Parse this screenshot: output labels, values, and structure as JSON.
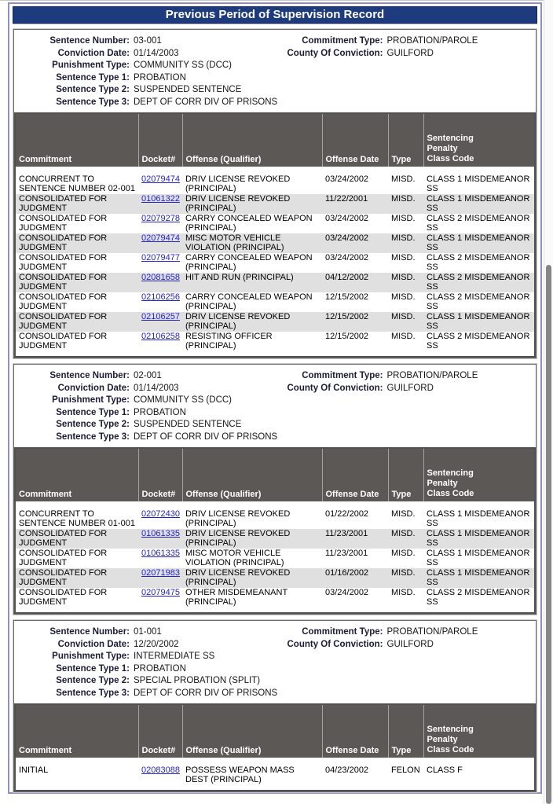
{
  "page": {
    "title": "Previous Period of Supervision Record"
  },
  "colors": {
    "title_bar": "#1e3c7d",
    "table_header": "#5c5856",
    "row_alt": "#e0e0e0",
    "link": "#2323cb",
    "outer_border": "#9090c0"
  },
  "labels": {
    "sentence_number": "Sentence Number:",
    "conviction_date": "Conviction Date:",
    "punishment_type": "Punishment Type:",
    "sentence_type_1": "Sentence Type 1:",
    "sentence_type_2": "Sentence Type 2:",
    "sentence_type_3": "Sentence Type 3:",
    "commitment_type": "Commitment Type:",
    "county_of_conviction": "County Of Conviction:"
  },
  "columns": {
    "commitment": "Commitment",
    "docket": "Docket#",
    "offense": "Offense (Qualifier)",
    "offense_date": "Offense Date",
    "type": "Type",
    "sentencing": "Sentencing\nPenalty\nClass Code"
  },
  "sections": [
    {
      "sentence_number": "03-001",
      "conviction_date": "01/14/2003",
      "punishment_type": "COMMUNITY SS (DCC)",
      "sentence_type_1": "PROBATION",
      "sentence_type_2": "SUSPENDED SENTENCE",
      "sentence_type_3": "DEPT OF CORR DIV OF PRISONS",
      "commitment_type": "PROBATION/PAROLE",
      "county_of_conviction": "GUILFORD",
      "rows": [
        {
          "commitment": "CONCURRENT TO SENTENCE NUMBER 02-001",
          "docket": "02079474",
          "offense": "DRIV LICENSE REVOKED (PRINCIPAL)",
          "offense_date": "03/24/2002",
          "type": "MISD.",
          "class_code": "CLASS 1 MISDEMEANOR SS"
        },
        {
          "commitment": "CONSOLIDATED FOR JUDGMENT",
          "docket": "01061322",
          "offense": "DRIV LICENSE REVOKED (PRINCIPAL)",
          "offense_date": "11/22/2001",
          "type": "MISD.",
          "class_code": "CLASS 1 MISDEMEANOR SS"
        },
        {
          "commitment": "CONSOLIDATED FOR JUDGMENT",
          "docket": "02079278",
          "offense": "CARRY CONCEALED WEAPON (PRINCIPAL)",
          "offense_date": "03/24/2002",
          "type": "MISD.",
          "class_code": "CLASS 2 MISDEMEANOR SS"
        },
        {
          "commitment": "CONSOLIDATED FOR JUDGMENT",
          "docket": "02079474",
          "offense": "MISC MOTOR VEHICLE VIOLATION (PRINCIPAL)",
          "offense_date": "03/24/2002",
          "type": "MISD.",
          "class_code": "CLASS 1 MISDEMEANOR SS"
        },
        {
          "commitment": "CONSOLIDATED FOR JUDGMENT",
          "docket": "02079477",
          "offense": "CARRY CONCEALED WEAPON (PRINCIPAL)",
          "offense_date": "03/24/2002",
          "type": "MISD.",
          "class_code": "CLASS 2 MISDEMEANOR SS"
        },
        {
          "commitment": "CONSOLIDATED FOR JUDGMENT",
          "docket": "02081658",
          "offense": "HIT AND RUN (PRINCIPAL)",
          "offense_date": "04/12/2002",
          "type": "MISD.",
          "class_code": "CLASS 2 MISDEMEANOR SS"
        },
        {
          "commitment": "CONSOLIDATED FOR JUDGMENT",
          "docket": "02106256",
          "offense": "CARRY CONCEALED WEAPON (PRINCIPAL)",
          "offense_date": "12/15/2002",
          "type": "MISD.",
          "class_code": "CLASS 2 MISDEMEANOR SS"
        },
        {
          "commitment": "CONSOLIDATED FOR JUDGMENT",
          "docket": "02106257",
          "offense": "DRIV LICENSE REVOKED (PRINCIPAL)",
          "offense_date": "12/15/2002",
          "type": "MISD.",
          "class_code": "CLASS 1 MISDEMEANOR SS"
        },
        {
          "commitment": "CONSOLIDATED FOR JUDGMENT",
          "docket": "02106258",
          "offense": "RESISTING OFFICER (PRINCIPAL)",
          "offense_date": "12/15/2002",
          "type": "MISD.",
          "class_code": "CLASS 2 MISDEMEANOR SS"
        }
      ]
    },
    {
      "sentence_number": "02-001",
      "conviction_date": "01/14/2003",
      "punishment_type": "COMMUNITY SS (DCC)",
      "sentence_type_1": "PROBATION",
      "sentence_type_2": "SUSPENDED SENTENCE",
      "sentence_type_3": "DEPT OF CORR DIV OF PRISONS",
      "commitment_type": "PROBATION/PAROLE",
      "county_of_conviction": "GUILFORD",
      "rows": [
        {
          "commitment": "CONCURRENT TO SENTENCE NUMBER 01-001",
          "docket": "02072430",
          "offense": "DRIV LICENSE REVOKED (PRINCIPAL)",
          "offense_date": "01/22/2002",
          "type": "MISD.",
          "class_code": "CLASS 1 MISDEMEANOR SS"
        },
        {
          "commitment": "CONSOLIDATED FOR JUDGMENT",
          "docket": "01061335",
          "offense": "DRIV LICENSE REVOKED (PRINCIPAL)",
          "offense_date": "11/23/2001",
          "type": "MISD.",
          "class_code": "CLASS 1 MISDEMEANOR SS"
        },
        {
          "commitment": "CONSOLIDATED FOR JUDGMENT",
          "docket": "01061335",
          "offense": "MISC MOTOR VEHICLE VIOLATION (PRINCIPAL)",
          "offense_date": "11/23/2001",
          "type": "MISD.",
          "class_code": "CLASS 1 MISDEMEANOR SS"
        },
        {
          "commitment": "CONSOLIDATED FOR JUDGMENT",
          "docket": "02071983",
          "offense": "DRIV LICENSE REVOKED (PRINCIPAL)",
          "offense_date": "01/16/2002",
          "type": "MISD.",
          "class_code": "CLASS 1 MISDEMEANOR SS"
        },
        {
          "commitment": "CONSOLIDATED FOR JUDGMENT",
          "docket": "02079475",
          "offense": "OTHER MISDEMEANANT (PRINCIPAL)",
          "offense_date": "03/24/2002",
          "type": "MISD.",
          "class_code": "CLASS 2 MISDEMEANOR SS"
        }
      ]
    },
    {
      "sentence_number": "01-001",
      "conviction_date": "12/20/2002",
      "punishment_type": "INTERMEDIATE SS",
      "sentence_type_1": "PROBATION",
      "sentence_type_2": "SPECIAL PROBATION (SPLIT)",
      "sentence_type_3": "DEPT OF CORR DIV OF PRISONS",
      "commitment_type": "PROBATION/PAROLE",
      "county_of_conviction": "GUILFORD",
      "rows": [
        {
          "commitment": "INITIAL",
          "docket": "02083088",
          "offense": "POSSESS WEAPON MASS DEST (PRINCIPAL)",
          "offense_date": "04/23/2002",
          "type": "FELON",
          "class_code": "CLASS F"
        }
      ]
    }
  ]
}
